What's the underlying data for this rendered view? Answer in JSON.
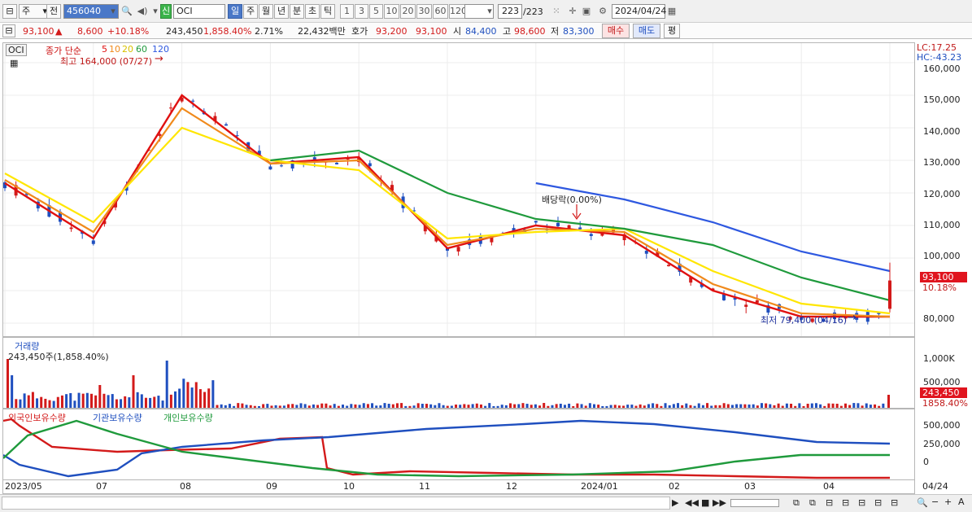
{
  "toolbar": {
    "market": "주",
    "prev_label": "전",
    "code": "456040",
    "new_badge": "신",
    "name": "OCI",
    "periods": [
      "일",
      "주",
      "월",
      "년",
      "분",
      "초",
      "틱"
    ],
    "selected_period": "일",
    "intervals": [
      "1",
      "3",
      "5",
      "10",
      "20",
      "30",
      "60",
      "120"
    ],
    "count": "223",
    "count_total": "/223",
    "date": "2024/04/24"
  },
  "quote": {
    "price": "93,100",
    "change": "8,600",
    "change_pct": "+10.18%",
    "volume": "243,450",
    "volume_pct": "1,858.40%",
    "turnover": "2.71%",
    "amount": "22,432백만",
    "hoga_label": "호가",
    "ask": "93,200",
    "bid": "93,100",
    "open_label": "시",
    "open": "84,400",
    "high_label": "고",
    "high": "98,600",
    "low_label": "저",
    "low": "83,300",
    "buy_label": "매수",
    "sell_label": "매도",
    "eval_label": "평"
  },
  "price_panel": {
    "symbol": "OCI",
    "legend_prefix": "종가 단순",
    "legend_periods": [
      "5",
      "10",
      "20",
      "60",
      "120"
    ],
    "high_annotation": "최고 164,000 (07/27)",
    "low_annotation": "최저 79,400 (04/16)",
    "dividend_annotation": "배당락(0.00%)",
    "lc": "LC:17.25",
    "hc": "HC:-43.23",
    "y_ticks": [
      "160,000",
      "150,000",
      "140,000",
      "130,000",
      "120,000",
      "110,000",
      "100,000",
      "80,000"
    ],
    "price_tag": "93,100",
    "pct_tag": "10.18%"
  },
  "volume_panel": {
    "title": "거래량",
    "value": "243,450주(1,858.40%)",
    "y_ticks": [
      "1,000K",
      "500,000"
    ],
    "tag1": "243,450",
    "tag2": "1858.40%"
  },
  "holding_panel": {
    "legends": [
      "외국인보유수량",
      "기관보유수량",
      "개인보유수량"
    ],
    "y_ticks": [
      "500,000",
      "250,000",
      "0"
    ]
  },
  "x_axis": {
    "labels": [
      "2023/05",
      "07",
      "08",
      "09",
      "10",
      "11",
      "12",
      "2024/01",
      "02",
      "03",
      "04"
    ],
    "right_label": "04/24"
  },
  "colors": {
    "up": "#d31a1a",
    "down": "#1f4fbf",
    "ma5": "#e01010",
    "ma10": "#f08a1c",
    "ma20": "#ffe600",
    "ma60": "#1f9a3c",
    "ma120": "#2e58e0"
  },
  "chart_data": {
    "type": "line",
    "x": [
      "2023/05",
      "07",
      "08",
      "09",
      "10",
      "11",
      "12",
      "2024/01",
      "02",
      "03",
      "04"
    ],
    "series": [
      {
        "name": "5",
        "values": [
          123000,
          106000,
          150000,
          129000,
          131000,
          103000,
          110000,
          107000,
          90000,
          82000,
          82000
        ]
      },
      {
        "name": "10",
        "values": [
          124000,
          108000,
          146000,
          129000,
          130000,
          104000,
          109000,
          108000,
          92000,
          83000,
          82000
        ]
      },
      {
        "name": "20",
        "values": [
          126000,
          111000,
          140000,
          130000,
          127000,
          106000,
          108000,
          109000,
          96000,
          86000,
          83000
        ]
      },
      {
        "name": "60",
        "values": [
          null,
          null,
          null,
          130000,
          133000,
          120000,
          112000,
          109000,
          104000,
          94000,
          87000
        ]
      },
      {
        "name": "120",
        "values": [
          null,
          null,
          null,
          null,
          null,
          null,
          123000,
          118000,
          111000,
          102000,
          96000
        ]
      }
    ],
    "ylim": [
      76000,
      166000
    ],
    "high": 164000,
    "low": 79400
  }
}
